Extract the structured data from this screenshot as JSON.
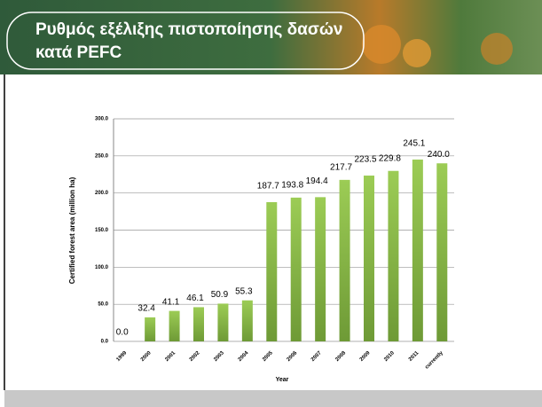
{
  "chart_data": {
    "type": "bar",
    "title_lines": [
      "Ρυθμός εξέλιξης πιστοποίησης δασών",
      "κατά PEFC"
    ],
    "x_label": "Year",
    "y_label": "Certified forest area (million ha)",
    "categories": [
      "1999",
      "2000",
      "2001",
      "2002",
      "2003",
      "2004",
      "2005",
      "2006",
      "2007",
      "2008",
      "2009",
      "2010",
      "2011",
      "currently"
    ],
    "values": [
      0,
      32.4,
      41.1,
      46.1,
      50.9,
      55.3,
      187.7,
      193.8,
      194.4,
      217.7,
      223.5,
      229.8,
      245.1,
      240
    ],
    "value_labels": [
      "0.0",
      "32.4",
      "41.1",
      "46.1",
      "50.9",
      "55.3",
      "187.7",
      "193.8",
      "194.4",
      "217.7",
      "223.5",
      "229.8",
      "245.1",
      "240.0"
    ],
    "color": "#8cc04a",
    "ylim": [
      0,
      300
    ],
    "yticks": [
      {
        "value": 0,
        "label": "0.0"
      },
      {
        "value": 50,
        "label": "50.0"
      },
      {
        "value": 100,
        "label": "100.0"
      },
      {
        "value": 150,
        "label": "150.0"
      },
      {
        "value": 200,
        "label": "200.0"
      },
      {
        "value": 250,
        "label": "250.0"
      },
      {
        "value": 300,
        "label": "300.0"
      }
    ],
    "grid": true
  }
}
